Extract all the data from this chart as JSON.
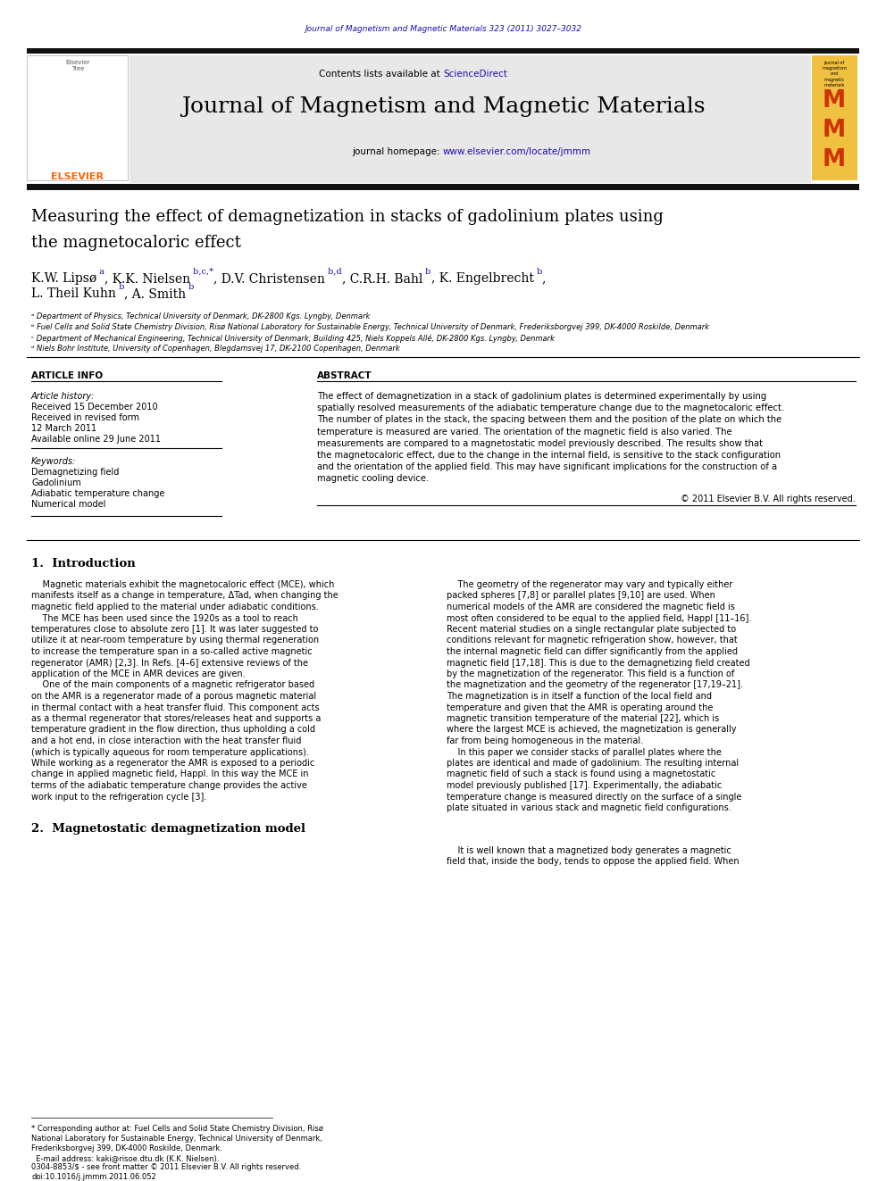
{
  "page_width": 9.92,
  "page_height": 13.23,
  "bg_color": "#ffffff",
  "top_journal_ref": "Journal of Magnetism and Magnetic Materials 323 (2011) 3027–3032",
  "journal_name": "Journal of Magnetism and Magnetic Materials",
  "journal_homepage": "www.elsevier.com/locate/jmmm",
  "contents_line": "Contents lists available at ScienceDirect",
  "affil_a": "ᵃ Department of Physics, Technical University of Denmark, DK-2800 Kgs. Lyngby, Denmark",
  "affil_b": "ᵇ Fuel Cells and Solid State Chemistry Division, Risø National Laboratory for Sustainable Energy, Technical University of Denmark, Frederiksborgvej 399, DK-4000 Roskilde, Denmark",
  "affil_c": "ᶜ Department of Mechanical Engineering, Technical University of Denmark, Building 425, Niels Koppels Allé, DK-2800 Kgs. Lyngby, Denmark",
  "affil_d": "ᵈ Niels Bohr Institute, University of Copenhagen, Blegdamsvej 17, DK-2100 Copenhagen, Denmark",
  "article_info_title": "ARTICLE INFO",
  "abstract_title": "ABSTRACT",
  "article_history_title": "Article history:",
  "received": "Received 15 December 2010",
  "revised": "Received in revised form",
  "revised2": "12 March 2011",
  "online": "Available online 29 June 2011",
  "keywords_title": "Keywords:",
  "kw1": "Demagnetizing field",
  "kw2": "Gadolinium",
  "kw3": "Adiabatic temperature change",
  "kw4": "Numerical model",
  "abstract_text": [
    "The effect of demagnetization in a stack of gadolinium plates is determined experimentally by using",
    "spatially resolved measurements of the adiabatic temperature change due to the magnetocaloric effect.",
    "The number of plates in the stack, the spacing between them and the position of the plate on which the",
    "temperature is measured are varied. The orientation of the magnetic field is also varied. The",
    "measurements are compared to a magnetostatic model previously described. The results show that",
    "the magnetocaloric effect, due to the change in the internal field, is sensitive to the stack configuration",
    "and the orientation of the applied field. This may have significant implications for the construction of a",
    "magnetic cooling device."
  ],
  "copyright": "© 2011 Elsevier B.V. All rights reserved.",
  "section1_title": "1.  Introduction",
  "left_col_text": [
    "    Magnetic materials exhibit the magnetocaloric effect (MCE), which",
    "manifests itself as a change in temperature, ΔTad, when changing the",
    "magnetic field applied to the material under adiabatic conditions.",
    "    The MCE has been used since the 1920s as a tool to reach",
    "temperatures close to absolute zero [1]. It was later suggested to",
    "utilize it at near-room temperature by using thermal regeneration",
    "to increase the temperature span in a so-called active magnetic",
    "regenerator (AMR) [2,3]. In Refs. [4–6] extensive reviews of the",
    "application of the MCE in AMR devices are given.",
    "    One of the main components of a magnetic refrigerator based",
    "on the AMR is a regenerator made of a porous magnetic material",
    "in thermal contact with a heat transfer fluid. This component acts",
    "as a thermal regenerator that stores/releases heat and supports a",
    "temperature gradient in the flow direction, thus upholding a cold",
    "and a hot end, in close interaction with the heat transfer fluid",
    "(which is typically aqueous for room temperature applications).",
    "While working as a regenerator the AMR is exposed to a periodic",
    "change in applied magnetic field, Happl. In this way the MCE in",
    "terms of the adiabatic temperature change provides the active",
    "work input to the refrigeration cycle [3]."
  ],
  "right_col_text": [
    "    The geometry of the regenerator may vary and typically either",
    "packed spheres [7,8] or parallel plates [9,10] are used. When",
    "numerical models of the AMR are considered the magnetic field is",
    "most often considered to be equal to the applied field, Happl [11–16].",
    "Recent material studies on a single rectangular plate subjected to",
    "conditions relevant for magnetic refrigeration show, however, that",
    "the internal magnetic field can differ significantly from the applied",
    "magnetic field [17,18]. This is due to the demagnetizing field created",
    "by the magnetization of the regenerator. This field is a function of",
    "the magnetization and the geometry of the regenerator [17,19–21].",
    "The magnetization is in itself a function of the local field and",
    "temperature and given that the AMR is operating around the",
    "magnetic transition temperature of the material [22], which is",
    "where the largest MCE is achieved, the magnetization is generally",
    "far from being homogeneous in the material.",
    "    In this paper we consider stacks of parallel plates where the",
    "plates are identical and made of gadolinium. The resulting internal",
    "magnetic field of such a stack is found using a magnetostatic",
    "model previously published [17]. Experimentally, the adiabatic",
    "temperature change is measured directly on the surface of a single",
    "plate situated in various stack and magnetic field configurations."
  ],
  "section2_title": "2.  Magnetostatic demagnetization model",
  "sect2_lines": [
    "    It is well known that a magnetized body generates a magnetic",
    "field that, inside the body, tends to oppose the applied field. When"
  ],
  "footnote_lines": [
    "* Corresponding author at: Fuel Cells and Solid State Chemistry Division, Risø",
    "National Laboratory for Sustainable Energy, Technical University of Denmark,",
    "Frederiksborgvej 399, DK-4000 Roskilde, Denmark.",
    "  E-mail address: kaki@risoe.dtu.dk (K.K. Nielsen)."
  ],
  "issn_lines": [
    "0304-8853/$ - see front matter © 2011 Elsevier B.V. All rights reserved.",
    "doi:10.1016/j.jmmm.2011.06.052"
  ],
  "blue_link": "#1a0dab",
  "orange_red": "#cc3300",
  "elsevier_orange": "#ff6600",
  "gray_bg": "#e8e8e8",
  "mm_yellow": "#f0c040",
  "dark_bar": "#111111"
}
